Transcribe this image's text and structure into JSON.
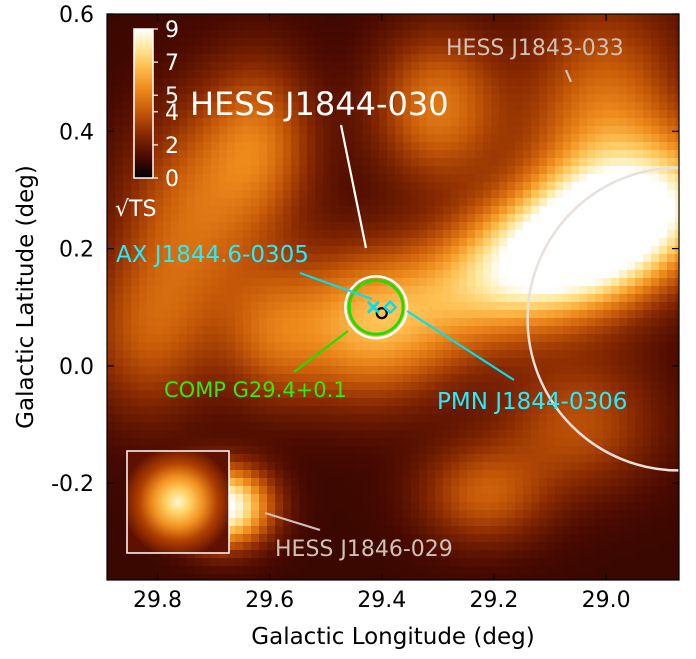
{
  "chart_data": {
    "type": "heatmap",
    "xlabel": "Galactic Longitude (deg)",
    "ylabel": "Galactic Latitude (deg)",
    "xlim": [
      29.89,
      28.87
    ],
    "ylim": [
      -0.365,
      0.6
    ],
    "x_reversed": true,
    "xticks": [
      29.8,
      29.6,
      29.4,
      29.2,
      29.0
    ],
    "xtick_labels": [
      "29.8",
      "29.6",
      "29.4",
      "29.2",
      "29.0"
    ],
    "yticks": [
      0.6,
      0.4,
      0.2,
      0.0,
      -0.2
    ],
    "ytick_labels": [
      "0.6",
      "0.4",
      "0.2",
      "0.0",
      "-0.2"
    ],
    "colorbar": {
      "label": "√TS",
      "ticks": [
        0,
        2,
        4,
        5,
        7,
        9
      ],
      "tick_labels": [
        "0",
        "2",
        "4",
        "5",
        "7",
        "9"
      ],
      "range": [
        0,
        9
      ]
    },
    "colormap": [
      "#000000",
      "#4a0a00",
      "#8a2a00",
      "#c75a08",
      "#ee8a1c",
      "#ffc050",
      "#ffe9a0",
      "#ffffff"
    ],
    "sources": [
      {
        "name": "HESS J1844-030",
        "l": 29.41,
        "b": 0.1,
        "r_outer": 0.055,
        "color": "#ffffff",
        "label_color": "#ffffff"
      },
      {
        "name": "COMP G29.4+0.1",
        "l": 29.41,
        "b": 0.1,
        "r": 0.048,
        "color": "#22dd00",
        "label_color": "#33ee00"
      },
      {
        "name": "AX J1844.6-0305",
        "l": 29.415,
        "b": 0.1,
        "marker": "x",
        "color": "#00e0ee",
        "label_color": "#22eeff"
      },
      {
        "name": "PMN J1844-0306",
        "l": 29.385,
        "b": 0.1,
        "marker": "diamond",
        "color": "#00e0ee",
        "label_color": "#22eeff"
      },
      {
        "name": "HESS J1843-033",
        "l": 28.87,
        "b": 0.08,
        "r": 0.27,
        "color": "#e8e0dc",
        "label_color": "#cfc0b8"
      },
      {
        "name": "HESS J1846-029",
        "label_color": "#cfc0b8"
      }
    ],
    "best_fit": {
      "l": 29.4,
      "b": 0.09,
      "marker": "circle",
      "color": "#000000"
    },
    "hotspots": [
      {
        "l": 29.05,
        "b": 0.21,
        "amp": 10.5,
        "sl": 0.17,
        "sb": 0.095,
        "rho": -0.55
      },
      {
        "l": 29.0,
        "b": 0.38,
        "amp": 4.0,
        "sl": 0.1,
        "sb": 0.16,
        "rho": 0.0
      },
      {
        "l": 29.68,
        "b": -0.24,
        "amp": 8.2,
        "sl": 0.055,
        "sb": 0.045,
        "rho": 0.0
      },
      {
        "l": 29.43,
        "b": 0.07,
        "amp": 4.5,
        "sl": 0.11,
        "sb": 0.09,
        "rho": 0.0
      },
      {
        "l": 29.74,
        "b": 0.25,
        "amp": 3.0,
        "sl": 0.09,
        "sb": 0.13,
        "rho": 0.0
      },
      {
        "l": 29.62,
        "b": 0.38,
        "amp": 3.2,
        "sl": 0.07,
        "sb": 0.1,
        "rho": 0.0
      },
      {
        "l": 29.3,
        "b": 0.44,
        "amp": 3.6,
        "sl": 0.08,
        "sb": 0.09,
        "rho": 0.0
      },
      {
        "l": 29.6,
        "b": 0.05,
        "amp": 2.0,
        "sl": 0.06,
        "sb": 0.08,
        "rho": 0.0
      },
      {
        "l": 29.22,
        "b": -0.22,
        "amp": 2.8,
        "sl": 0.08,
        "sb": 0.06,
        "rho": 0.0
      },
      {
        "l": 29.05,
        "b": -0.1,
        "amp": 2.5,
        "sl": 0.1,
        "sb": 0.08,
        "rho": 0.0
      },
      {
        "l": 29.82,
        "b": 0.05,
        "amp": 2.4,
        "sl": 0.08,
        "sb": 0.1,
        "rho": 0.0
      }
    ],
    "background_level": 1.0,
    "inset": {
      "description": "PSF",
      "color_peak": "#fff8d0"
    }
  }
}
